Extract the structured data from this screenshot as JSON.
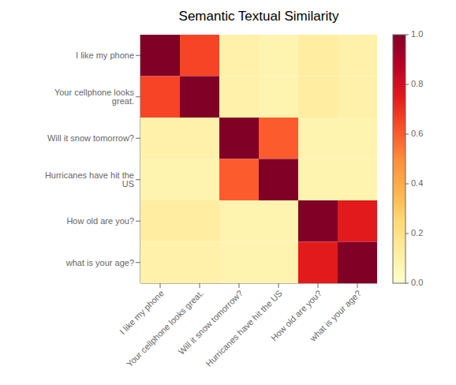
{
  "chart_data": {
    "type": "heatmap",
    "title": "Semantic Textual Similarity",
    "x_categories": [
      "I like my phone",
      "Your cellphone looks great.",
      "Will it snow tomorrow?",
      "Hurricanes have hit the US",
      "How old are you?",
      "what is your age?"
    ],
    "y_categories": [
      "I like my phone",
      "Your cellphone looks great.",
      "Will it snow tomorrow?",
      "Hurricanes have hit the US",
      "How old are you?",
      "what is your age?"
    ],
    "values": [
      [
        1.0,
        0.65,
        0.1,
        0.08,
        0.12,
        0.1
      ],
      [
        0.65,
        1.0,
        0.1,
        0.08,
        0.12,
        0.1
      ],
      [
        0.1,
        0.1,
        1.0,
        0.6,
        0.08,
        0.08
      ],
      [
        0.08,
        0.08,
        0.6,
        1.0,
        0.08,
        0.08
      ],
      [
        0.12,
        0.12,
        0.08,
        0.08,
        1.0,
        0.75
      ],
      [
        0.1,
        0.1,
        0.08,
        0.08,
        0.75,
        1.0
      ]
    ],
    "color": "YlOrRd",
    "colorbar_range": [
      0.0,
      1.0
    ],
    "colorbar_ticks": [
      {
        "value": 0.0,
        "label": "0.0"
      },
      0.2,
      0.4,
      0.6,
      0.8,
      {
        "value": 1.0,
        "label": "1.0"
      }
    ]
  }
}
